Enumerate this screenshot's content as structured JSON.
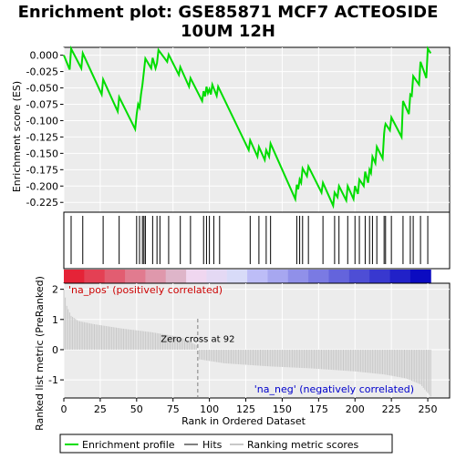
{
  "title_line1": "Enrichment plot: GSE85871 MCF7 ACTEOSIDE",
  "title_line2": "10UM 12H",
  "colors": {
    "es_line": "#00dd00",
    "hits": "#000000",
    "ranking": "#c8c8c8",
    "panel_bg": "#ececec",
    "grid": "#ffffff",
    "zero_cross": "#808080",
    "pos_label": "#cc0000",
    "neg_label": "#0000cc"
  },
  "legend": {
    "enrichment_profile": "Enrichment profile",
    "hits": "Hits",
    "ranking_metric_scores": "Ranking metric scores"
  },
  "chart_data": {
    "type": "line",
    "title": "Enrichment plot: GSE85871 MCF7 ACTEOSIDE 10UM 12H",
    "xlabel": "Rank in Ordered Dataset",
    "es_ylabel": "Enrichment score (ES)",
    "rank_ylabel": "Ranked list metric (PreRanked)",
    "xlim": [
      0,
      265
    ],
    "x_ticks": [
      "0",
      "25",
      "50",
      "75",
      "100",
      "125",
      "150",
      "175",
      "200",
      "225",
      "250"
    ],
    "es_ylim": [
      -0.24,
      0.012
    ],
    "es_ticks": [
      "0.000",
      "-0.025",
      "-0.050",
      "-0.075",
      "-0.100",
      "-0.125",
      "-0.150",
      "-0.175",
      "-0.200",
      "-0.225"
    ],
    "rank_ylim": [
      -1.6,
      2.2
    ],
    "rank_ticks": [
      "2",
      "1",
      "0",
      "-1"
    ],
    "zero_cross_rank": 92,
    "zero_cross_label": "Zero cross at 92",
    "pos_label": "'na_pos' (positively correlated)",
    "neg_label": "'na_neg' (negatively correlated)",
    "n_genes": 252,
    "hits": [
      5,
      13,
      27,
      38,
      50,
      52,
      54,
      55,
      56,
      61,
      64,
      66,
      72,
      80,
      87,
      96,
      98,
      100,
      103,
      107,
      128,
      134,
      139,
      142,
      160,
      162,
      164,
      168,
      178,
      186,
      189,
      195,
      200,
      203,
      207,
      210,
      212,
      215,
      220,
      221,
      225,
      233,
      238,
      240,
      245,
      250
    ],
    "es_points": [
      [
        0,
        0.0
      ],
      [
        4,
        -0.022
      ],
      [
        5,
        0.01
      ],
      [
        12,
        -0.02
      ],
      [
        13,
        0.003
      ],
      [
        26,
        -0.06
      ],
      [
        27,
        -0.037
      ],
      [
        37,
        -0.086
      ],
      [
        38,
        -0.064
      ],
      [
        49,
        -0.113
      ],
      [
        50,
        -0.091
      ],
      [
        51,
        -0.075
      ],
      [
        52,
        -0.08
      ],
      [
        53,
        -0.06
      ],
      [
        54,
        -0.045
      ],
      [
        55,
        -0.025
      ],
      [
        56,
        -0.005
      ],
      [
        60,
        -0.02
      ],
      [
        61,
        -0.004
      ],
      [
        63,
        -0.02
      ],
      [
        64,
        -0.012
      ],
      [
        65,
        0.008
      ],
      [
        71,
        -0.01
      ],
      [
        72,
        0.001
      ],
      [
        79,
        -0.03
      ],
      [
        80,
        -0.018
      ],
      [
        86,
        -0.048
      ],
      [
        87,
        -0.035
      ],
      [
        95,
        -0.07
      ],
      [
        96,
        -0.055
      ],
      [
        97,
        -0.063
      ],
      [
        98,
        -0.048
      ],
      [
        99,
        -0.058
      ],
      [
        100,
        -0.052
      ],
      [
        101,
        -0.06
      ],
      [
        102,
        -0.045
      ],
      [
        105,
        -0.062
      ],
      [
        106,
        -0.048
      ],
      [
        127,
        -0.145
      ],
      [
        128,
        -0.13
      ],
      [
        133,
        -0.155
      ],
      [
        134,
        -0.14
      ],
      [
        138,
        -0.16
      ],
      [
        139,
        -0.145
      ],
      [
        141,
        -0.155
      ],
      [
        142,
        -0.135
      ],
      [
        159,
        -0.22
      ],
      [
        160,
        -0.198
      ],
      [
        161,
        -0.205
      ],
      [
        162,
        -0.19
      ],
      [
        163,
        -0.195
      ],
      [
        164,
        -0.173
      ],
      [
        167,
        -0.185
      ],
      [
        168,
        -0.17
      ],
      [
        177,
        -0.21
      ],
      [
        178,
        -0.195
      ],
      [
        185,
        -0.23
      ],
      [
        186,
        -0.21
      ],
      [
        188,
        -0.217
      ],
      [
        189,
        -0.2
      ],
      [
        194,
        -0.222
      ],
      [
        195,
        -0.2
      ],
      [
        199,
        -0.22
      ],
      [
        200,
        -0.2
      ],
      [
        202,
        -0.212
      ],
      [
        203,
        -0.19
      ],
      [
        206,
        -0.2
      ],
      [
        207,
        -0.178
      ],
      [
        209,
        -0.195
      ],
      [
        210,
        -0.175
      ],
      [
        211,
        -0.18
      ],
      [
        212,
        -0.155
      ],
      [
        214,
        -0.165
      ],
      [
        215,
        -0.14
      ],
      [
        219,
        -0.158
      ],
      [
        220,
        -0.12
      ],
      [
        220.5,
        -0.11
      ],
      [
        221,
        -0.105
      ],
      [
        224,
        -0.115
      ],
      [
        225,
        -0.095
      ],
      [
        232,
        -0.125
      ],
      [
        233,
        -0.07
      ],
      [
        237,
        -0.09
      ],
      [
        238,
        -0.06
      ],
      [
        239,
        -0.062
      ],
      [
        240,
        -0.032
      ],
      [
        244,
        -0.045
      ],
      [
        245,
        -0.01
      ],
      [
        249,
        -0.035
      ],
      [
        250,
        0.01
      ],
      [
        252,
        0.003
      ]
    ],
    "ranking_curve": [
      [
        0,
        2.0
      ],
      [
        2,
        1.45
      ],
      [
        5,
        1.12
      ],
      [
        10,
        0.95
      ],
      [
        20,
        0.85
      ],
      [
        40,
        0.7
      ],
      [
        60,
        0.58
      ],
      [
        80,
        0.42
      ],
      [
        91,
        0.15
      ],
      [
        92,
        0.0
      ],
      [
        93,
        -0.32
      ],
      [
        110,
        -0.45
      ],
      [
        140,
        -0.55
      ],
      [
        170,
        -0.62
      ],
      [
        200,
        -0.72
      ],
      [
        220,
        -0.82
      ],
      [
        235,
        -0.95
      ],
      [
        245,
        -1.15
      ],
      [
        252,
        -1.55
      ]
    ]
  }
}
